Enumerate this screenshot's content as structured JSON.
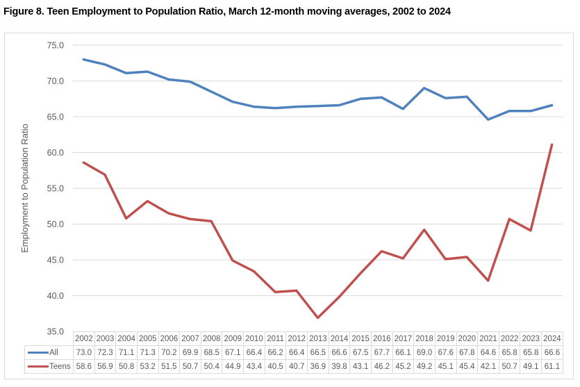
{
  "title": "Figure 8. Teen Employment to Population Ratio, March 12-month moving averages, 2002 to 2024",
  "chart_data": {
    "type": "line",
    "title": "Figure 8. Teen Employment to Population Ratio, March 12-month moving averages, 2002 to 2024",
    "xlabel": "",
    "ylabel": "Employment to Population Ratio",
    "ylim": [
      35.0,
      75.0
    ],
    "yticks": [
      "75.0",
      "70.0",
      "65.0",
      "60.0",
      "55.0",
      "50.0",
      "45.0",
      "40.0",
      "35.0"
    ],
    "grid": true,
    "legend": "data-table",
    "categories": [
      "2002",
      "2003",
      "2004",
      "2005",
      "2006",
      "2007",
      "2008",
      "2009",
      "2010",
      "2011",
      "2012",
      "2013",
      "2014",
      "2015",
      "2016",
      "2017",
      "2018",
      "2019",
      "2020",
      "2021",
      "2022",
      "2023",
      "2024"
    ],
    "series": [
      {
        "name": "All",
        "color": "#4f81bd",
        "values": [
          73.0,
          72.3,
          71.1,
          71.3,
          70.2,
          69.9,
          68.5,
          67.1,
          66.4,
          66.2,
          66.4,
          66.5,
          66.6,
          67.5,
          67.7,
          66.1,
          69.0,
          67.6,
          67.8,
          64.6,
          65.8,
          65.8,
          66.6
        ]
      },
      {
        "name": "Teens",
        "color": "#c0504d",
        "values": [
          58.6,
          56.9,
          50.8,
          53.2,
          51.5,
          50.7,
          50.4,
          44.9,
          43.4,
          40.5,
          40.7,
          36.9,
          39.8,
          43.1,
          46.2,
          45.2,
          49.2,
          45.1,
          45.4,
          42.1,
          50.7,
          49.1,
          61.1
        ]
      }
    ],
    "table_values": {
      "All": [
        "73.0",
        "72.3",
        "71.1",
        "71.3",
        "70.2",
        "69.9",
        "68.5",
        "67.1",
        "66.4",
        "66.2",
        "66.4",
        "66.5",
        "66.6",
        "67.5",
        "67.7",
        "66.1",
        "69.0",
        "67.6",
        "67.8",
        "64.6",
        "65.8",
        "65.8",
        "66.6"
      ],
      "Teens": [
        "58.6",
        "56.9",
        "50.8",
        "53.2",
        "51.5",
        "50.7",
        "50.4",
        "44.9",
        "43.4",
        "40.5",
        "40.7",
        "36.9",
        "39.8",
        "43.1",
        "46.2",
        "45.2",
        "49.2",
        "45.1",
        "45.4",
        "42.1",
        "50.7",
        "49.1",
        "61.1"
      ]
    }
  }
}
